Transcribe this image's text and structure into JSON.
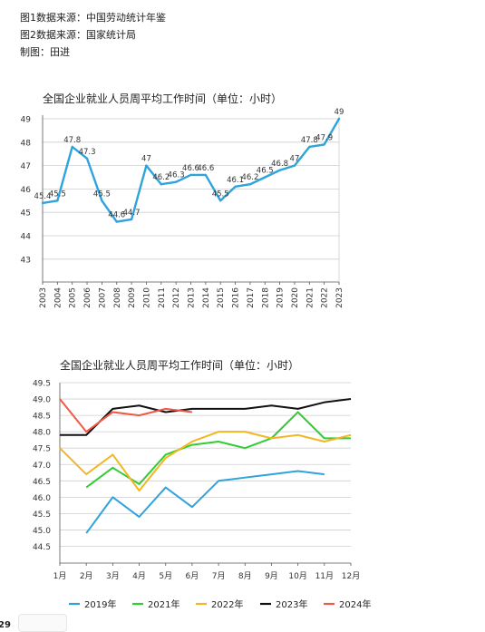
{
  "notes": {
    "line1": "图1数据来源：中国劳动统计年鉴",
    "line2": "图2数据来源：国家统计局",
    "line3": "制图：田进"
  },
  "corner_label": "29",
  "chart_data": [
    {
      "type": "line",
      "title": "全国企业就业人员周平均工作时间（单位：小时）",
      "xlabel": "",
      "ylabel": "",
      "x": [
        "2003",
        "2004",
        "2005",
        "2006",
        "2007",
        "2008",
        "2009",
        "2010",
        "2011",
        "2012",
        "2013",
        "2014",
        "2015",
        "2016",
        "2017",
        "2018",
        "2019",
        "2020",
        "2021",
        "2022",
        "2023"
      ],
      "series": [
        {
          "values": [
            45.4,
            45.5,
            47.8,
            47.3,
            45.5,
            44.6,
            44.7,
            47,
            46.2,
            46.3,
            46.6,
            46.6,
            45.5,
            46.1,
            46.2,
            46.5,
            46.8,
            47,
            47.8,
            47.9,
            49
          ],
          "labels": [
            "45.4",
            "45.5",
            "47.8",
            "47.3",
            "45.5",
            "44.6",
            "44.7",
            "47",
            "46.2",
            "46.3",
            "46.6",
            "46.6",
            "45.5",
            "46.1",
            "46.2",
            "46.5",
            "46.8",
            "47",
            "47.8",
            "47.9",
            "49"
          ],
          "color": "#2ea3dc"
        }
      ],
      "ylim": [
        43,
        49
      ],
      "yticks": [
        "43",
        "44",
        "45",
        "46",
        "47",
        "48",
        "49"
      ],
      "grid": true
    },
    {
      "type": "line",
      "title": "全国企业就业人员周平均工作时间（单位：小时）",
      "xlabel": "",
      "ylabel": "",
      "x": [
        "1月",
        "2月",
        "3月",
        "4月",
        "5月",
        "6月",
        "7月",
        "8月",
        "9月",
        "10月",
        "11月",
        "12月"
      ],
      "series": [
        {
          "name": "2019年",
          "color": "#2ea3dc",
          "values": [
            null,
            44.9,
            46.0,
            45.4,
            46.3,
            45.7,
            46.5,
            46.6,
            46.7,
            46.8,
            46.7,
            null
          ]
        },
        {
          "name": "2021年",
          "color": "#33cc33",
          "values": [
            null,
            46.3,
            46.9,
            46.4,
            47.3,
            47.6,
            47.7,
            47.5,
            47.8,
            48.6,
            47.8,
            47.8
          ]
        },
        {
          "name": "2022年",
          "color": "#f2b722",
          "values": [
            47.5,
            46.7,
            47.3,
            46.2,
            47.2,
            47.7,
            48.0,
            48.0,
            47.8,
            47.9,
            47.7,
            47.9
          ]
        },
        {
          "name": "2023年",
          "color": "#111111",
          "values": [
            47.9,
            47.9,
            48.7,
            48.8,
            48.6,
            48.7,
            48.7,
            48.7,
            48.8,
            48.7,
            48.9,
            49.0
          ]
        },
        {
          "name": "2024年",
          "color": "#ee5a45",
          "values": [
            49.0,
            48.0,
            48.6,
            48.5,
            48.7,
            48.6,
            null,
            null,
            null,
            null,
            null,
            null
          ]
        }
      ],
      "ylim": [
        44.5,
        49.5
      ],
      "yticks": [
        "44.5",
        "45.0",
        "45.5",
        "46.0",
        "46.5",
        "47.0",
        "47.5",
        "48.0",
        "48.5",
        "49.0",
        "49.5"
      ],
      "grid": true,
      "legend": "bottom"
    }
  ]
}
